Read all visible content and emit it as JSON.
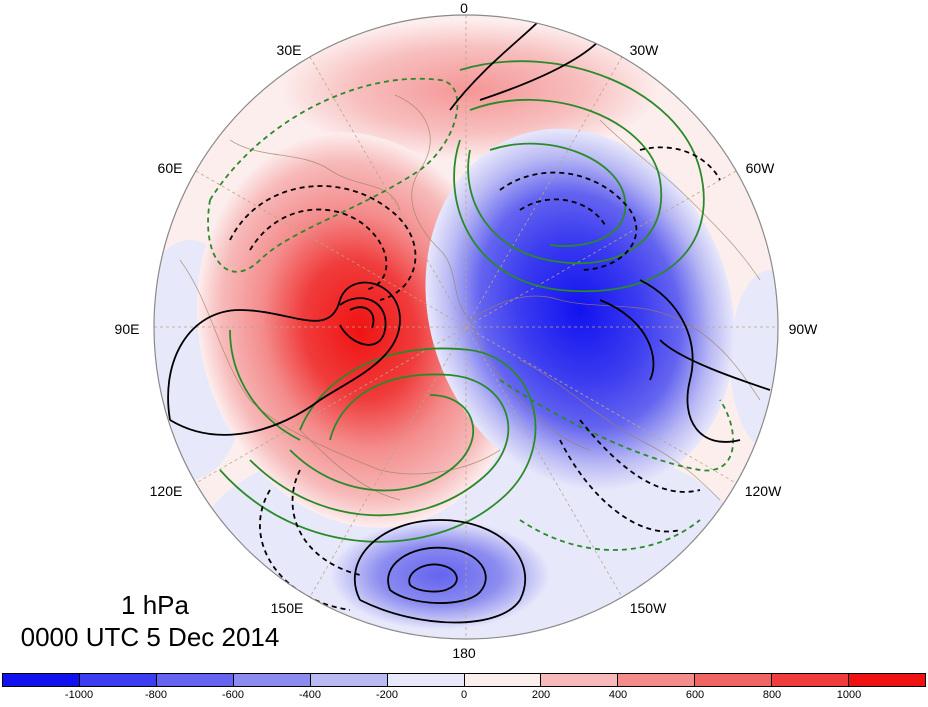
{
  "map": {
    "projection": "polar stereographic, north pole centered",
    "longitude_labels": {
      "lon_0": "0",
      "lon_30w": "30W",
      "lon_60w": "60W",
      "lon_90w": "90W",
      "lon_120w": "120W",
      "lon_150w": "150W",
      "lon_180": "180",
      "lon_150e": "150E",
      "lon_120e": "120E",
      "lon_90e": "90E",
      "lon_60e": "60E",
      "lon_30e": "30E"
    },
    "fields": {
      "shading_positive": "red",
      "shading_negative": "blue",
      "contours_solid_black": "positive",
      "contours_dashed_black": "negative",
      "contours_green": "second field"
    }
  },
  "caption": {
    "level": "1 hPa",
    "time": "0000 UTC 5 Dec 2014"
  },
  "colorbar": {
    "colors": [
      "#1212f0",
      "#3c3cf0",
      "#6464f0",
      "#8c8cf0",
      "#b9b9f4",
      "#e8e8fb",
      "#fdeeee",
      "#f7b9b9",
      "#f48c8c",
      "#f06464",
      "#f03c3c",
      "#f01212"
    ],
    "tick_labels": [
      "-1000",
      "-800",
      "-600",
      "-400",
      "-200",
      "0",
      "200",
      "400",
      "600",
      "800",
      "1000"
    ]
  }
}
